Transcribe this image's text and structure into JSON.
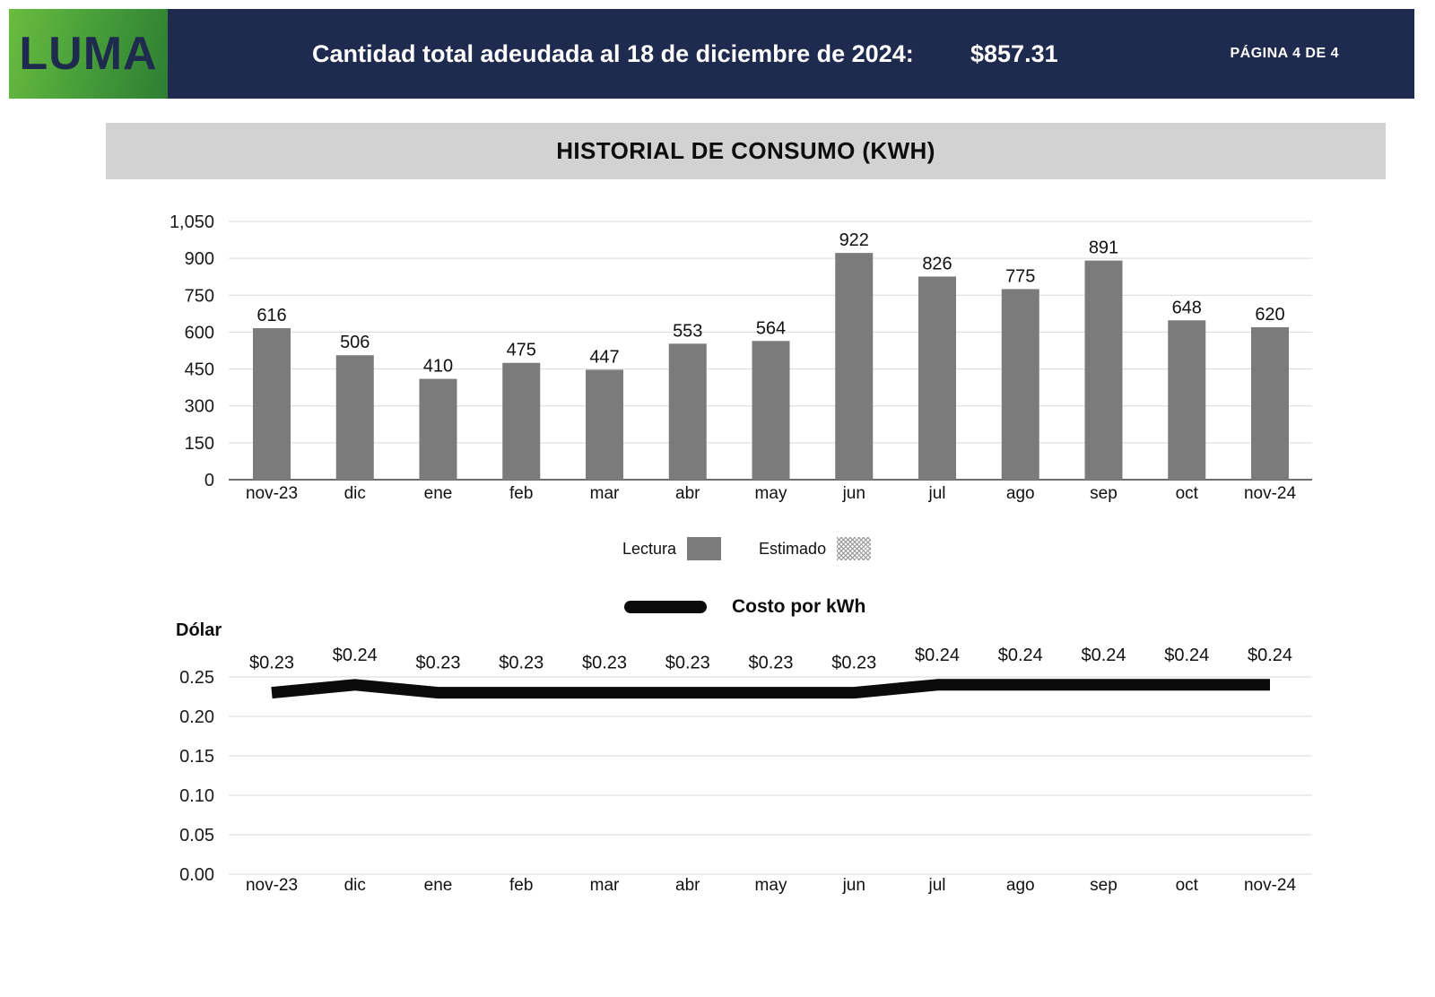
{
  "header": {
    "logo_text": "LUMA",
    "title": "Cantidad total adeudada al 18 de diciembre de 2024:",
    "amount": "$857.31",
    "page_label": "PÁGINA 4 DE 4",
    "colors": {
      "bar_navy": "#1e2a4e",
      "logo_green_light": "#6abd3f",
      "logo_green_dark": "#2d7e33"
    }
  },
  "section_banner": {
    "title": "HISTORIAL DE CONSUMO (KWH)",
    "background": "#d2d2d2"
  },
  "chart_data": [
    {
      "type": "bar",
      "title": "HISTORIAL DE CONSUMO (KWH)",
      "categories": [
        "nov-23",
        "dic",
        "ene",
        "feb",
        "mar",
        "abr",
        "may",
        "jun",
        "jul",
        "ago",
        "sep",
        "oct",
        "nov-24"
      ],
      "series": [
        {
          "name": "Lectura",
          "values": [
            616,
            506,
            410,
            475,
            447,
            553,
            564,
            922,
            826,
            775,
            891,
            648,
            620
          ]
        }
      ],
      "ylim": [
        0,
        1050
      ],
      "ytick_step": 150,
      "ytick_labels": [
        "0",
        "150",
        "300",
        "450",
        "600",
        "750",
        "900",
        "1,050"
      ],
      "grid": true,
      "bar_color": "#7b7b7b",
      "legend_position": "bottom",
      "legend": [
        {
          "label": "Lectura",
          "swatch": "solid"
        },
        {
          "label": "Estimado",
          "swatch": "hatched"
        }
      ]
    },
    {
      "type": "line",
      "title": "Costo por kWh",
      "ylabel": "Dólar",
      "categories": [
        "nov-23",
        "dic",
        "ene",
        "feb",
        "mar",
        "abr",
        "may",
        "jun",
        "jul",
        "ago",
        "sep",
        "oct",
        "nov-24"
      ],
      "values": [
        0.23,
        0.24,
        0.23,
        0.23,
        0.23,
        0.23,
        0.23,
        0.23,
        0.24,
        0.24,
        0.24,
        0.24,
        0.24
      ],
      "point_labels": [
        "$0.23",
        "$0.24",
        "$0.23",
        "$0.23",
        "$0.23",
        "$0.23",
        "$0.23",
        "$0.23",
        "$0.24",
        "$0.24",
        "$0.24",
        "$0.24",
        "$0.24"
      ],
      "ylim": [
        0,
        0.25
      ],
      "ytick_step": 0.05,
      "ytick_labels": [
        "0.00",
        "0.05",
        "0.10",
        "0.15",
        "0.20",
        "0.25"
      ],
      "grid": true,
      "line_color": "#0b0b0b",
      "legend_position": "top"
    }
  ]
}
